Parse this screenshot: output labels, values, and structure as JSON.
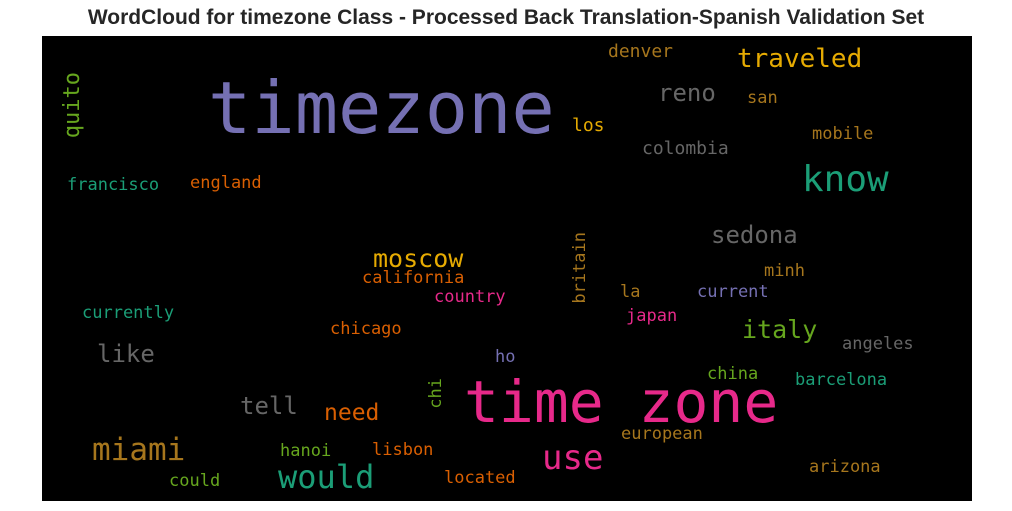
{
  "title": "WordCloud for timezone Class - Processed Back Translation-Spanish Validation Set",
  "words": [
    {
      "text": "timezone",
      "color": "#7570b3"
    },
    {
      "text": "time zone",
      "color": "#e7298a"
    },
    {
      "text": "know",
      "color": "#1b9e77"
    },
    {
      "text": "would",
      "color": "#1b9e77"
    },
    {
      "text": "use",
      "color": "#e7298a"
    },
    {
      "text": "miami",
      "color": "#a6761d"
    },
    {
      "text": "traveled",
      "color": "#e6ab02"
    },
    {
      "text": "moscow",
      "color": "#e6ab02"
    },
    {
      "text": "sedona",
      "color": "#666666"
    },
    {
      "text": "italy",
      "color": "#66a61e"
    },
    {
      "text": "quito",
      "color": "#66a61e"
    },
    {
      "text": "reno",
      "color": "#666666"
    },
    {
      "text": "like",
      "color": "#666666"
    },
    {
      "text": "tell",
      "color": "#666666"
    },
    {
      "text": "need",
      "color": "#d95f02"
    },
    {
      "text": "denver",
      "color": "#a6761d"
    },
    {
      "text": "san",
      "color": "#a6761d"
    },
    {
      "text": "los",
      "color": "#e6ab02"
    },
    {
      "text": "colombia",
      "color": "#666666"
    },
    {
      "text": "mobile",
      "color": "#a6761d"
    },
    {
      "text": "francisco",
      "color": "#1b9e77"
    },
    {
      "text": "england",
      "color": "#d95f02"
    },
    {
      "text": "california",
      "color": "#d95f02"
    },
    {
      "text": "country",
      "color": "#e7298a"
    },
    {
      "text": "britain",
      "color": "#a6761d"
    },
    {
      "text": "minh",
      "color": "#a6761d"
    },
    {
      "text": "la",
      "color": "#a6761d"
    },
    {
      "text": "current",
      "color": "#7570b3"
    },
    {
      "text": "currently",
      "color": "#1b9e77"
    },
    {
      "text": "japan",
      "color": "#e7298a"
    },
    {
      "text": "chicago",
      "color": "#d95f02"
    },
    {
      "text": "angeles",
      "color": "#666666"
    },
    {
      "text": "ho",
      "color": "#7570b3"
    },
    {
      "text": "chi",
      "color": "#66a61e"
    },
    {
      "text": "china",
      "color": "#66a61e"
    },
    {
      "text": "barcelona",
      "color": "#1b9e77"
    },
    {
      "text": "european",
      "color": "#a6761d"
    },
    {
      "text": "hanoi",
      "color": "#66a61e"
    },
    {
      "text": "lisbon",
      "color": "#d95f02"
    },
    {
      "text": "arizona",
      "color": "#a6761d"
    },
    {
      "text": "could",
      "color": "#66a61e"
    },
    {
      "text": "located",
      "color": "#d95f02"
    }
  ]
}
